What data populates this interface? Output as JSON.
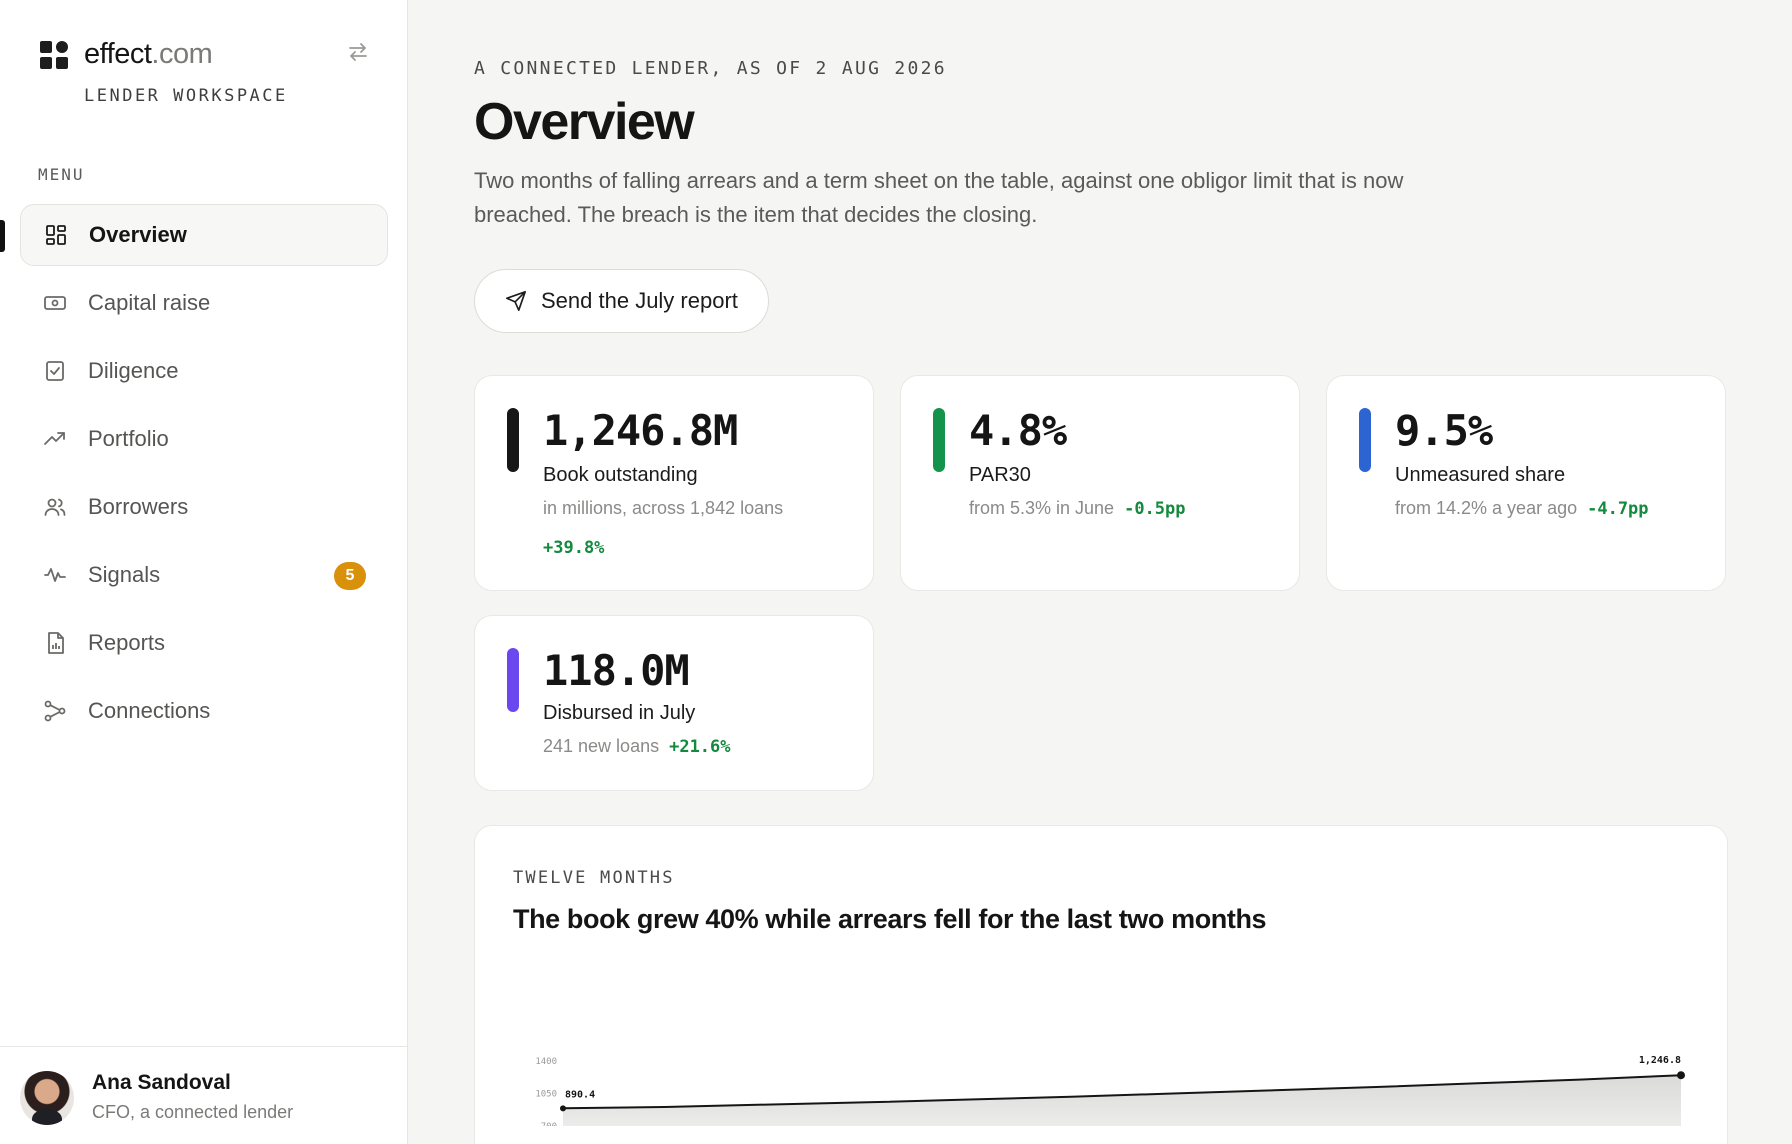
{
  "brand": {
    "name": "effect",
    "suffix": ".com",
    "workspace": "LENDER WORKSPACE"
  },
  "sidebar": {
    "menu_label": "MENU",
    "items": [
      {
        "label": "Overview",
        "icon": "grid-icon",
        "active": true
      },
      {
        "label": "Capital raise",
        "icon": "banknote-icon"
      },
      {
        "label": "Diligence",
        "icon": "checklist-icon"
      },
      {
        "label": "Portfolio",
        "icon": "trend-up-icon"
      },
      {
        "label": "Borrowers",
        "icon": "users-icon"
      },
      {
        "label": "Signals",
        "icon": "pulse-icon",
        "badge": "5"
      },
      {
        "label": "Reports",
        "icon": "report-icon"
      },
      {
        "label": "Connections",
        "icon": "connections-icon"
      }
    ],
    "badge_color": "#d9900a"
  },
  "user": {
    "name": "Ana Sandoval",
    "role": "CFO, a connected lender"
  },
  "header": {
    "eyebrow": "A CONNECTED LENDER, AS OF 2 AUG 2026",
    "title": "Overview",
    "description": "Two months of falling arrears and a term sheet on the table, against one obligor limit that is now breached. The breach is the item that decides the closing.",
    "send_button": "Send the July report"
  },
  "kpis": [
    {
      "value": "1,246.8M",
      "label": "Book outstanding",
      "sub": "in millions, across 1,842 loans",
      "delta": "+39.8%",
      "color": "#161616"
    },
    {
      "value": "4.8%",
      "label": "PAR30",
      "sub": "from 5.3% in June",
      "delta": "-0.5pp",
      "color": "#14934a"
    },
    {
      "value": "9.5%",
      "label": "Unmeasured share",
      "sub": "from 14.2% a year ago",
      "delta": "-4.7pp",
      "color": "#2c64d2"
    },
    {
      "value": "118.0M",
      "label": "Disbursed in July",
      "sub": "241 new loans",
      "delta": "+21.6%",
      "color": "#6a47ef"
    }
  ],
  "chart": {
    "eyebrow": "TWELVE MONTHS",
    "title": "The book grew 40% while arrears fell for the last two months"
  },
  "chart_data": {
    "type": "area",
    "title": "The book grew 40% while arrears fell for the last two months",
    "yticks": [
      "1400",
      "1050",
      "700"
    ],
    "ylim": [
      700,
      1400
    ],
    "series": [
      {
        "values": [
          890.4,
          905,
          930,
          955,
          985,
          1015,
          1050,
          1085,
          1120,
          1160,
          1200,
          1246.8
        ]
      }
    ],
    "labels": {
      "start": "890.4",
      "end": "1,246.8"
    }
  }
}
